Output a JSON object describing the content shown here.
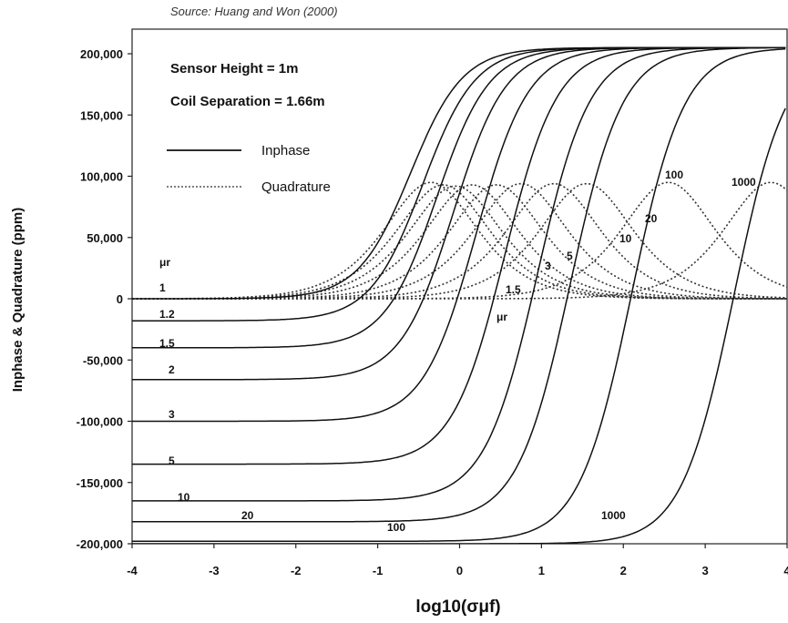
{
  "source": "Source: Huang and Won (2000)",
  "chart_data": {
    "type": "line",
    "xlabel": "log10(σμf)",
    "ylabel": "Inphase & Quadrature (ppm)",
    "xlim": [
      -4,
      4
    ],
    "ylim": [
      -200000,
      205000
    ],
    "x_ticks": [
      "-4",
      "-3",
      "-2",
      "-1",
      "0",
      "1",
      "2",
      "3",
      "4"
    ],
    "y_ticks": [
      "200,000",
      "150,000",
      "100,000",
      "50,000",
      "0",
      "-50,000",
      "-100,000",
      "-150,000",
      "-200,000"
    ],
    "annotations": [
      "Sensor Height  = 1m",
      "Coil Separation = 1.66m"
    ],
    "legend": [
      {
        "label": "Inphase",
        "style": "solid"
      },
      {
        "label": "Quadrature",
        "style": "dotted"
      }
    ],
    "mu_symbol": "μr",
    "inphase_series": [
      {
        "label": "1",
        "low": 0,
        "high": 205000,
        "center": -0.6,
        "width": 0.32
      },
      {
        "label": "1.2",
        "low": -18000,
        "high": 205000,
        "center": -0.45,
        "width": 0.32
      },
      {
        "label": "1.5",
        "low": -40000,
        "high": 205000,
        "center": -0.28,
        "width": 0.32
      },
      {
        "label": "2",
        "low": -66000,
        "high": 205000,
        "center": -0.08,
        "width": 0.32
      },
      {
        "label": "3",
        "low": -100000,
        "high": 205000,
        "center": 0.2,
        "width": 0.32
      },
      {
        "label": "5",
        "low": -135000,
        "high": 205000,
        "center": 0.55,
        "width": 0.32
      },
      {
        "label": "10",
        "low": -165000,
        "high": 205000,
        "center": 0.95,
        "width": 0.32
      },
      {
        "label": "20",
        "low": -182000,
        "high": 205000,
        "center": 1.35,
        "width": 0.32
      },
      {
        "label": "100",
        "low": -198000,
        "high": 205000,
        "center": 2.1,
        "width": 0.32
      },
      {
        "label": "1000",
        "low": -200000,
        "high": 205000,
        "center": 3.35,
        "width": 0.32
      }
    ],
    "quadrature_series": [
      {
        "label": "1",
        "peak": 95000,
        "center": -0.35
      },
      {
        "label": "1.2",
        "peak": 93000,
        "center": -0.2
      },
      {
        "label": "1.5",
        "peak": 92000,
        "center": -0.05
      },
      {
        "label": "2",
        "peak": 93000,
        "center": 0.15
      },
      {
        "label": "3",
        "peak": 93000,
        "center": 0.45
      },
      {
        "label": "5",
        "peak": 94000,
        "center": 0.75
      },
      {
        "label": "10",
        "peak": 94000,
        "center": 1.15
      },
      {
        "label": "20",
        "peak": 94000,
        "center": 1.55
      },
      {
        "label": "100",
        "peak": 95000,
        "center": 2.55
      },
      {
        "label": "1000",
        "peak": 95000,
        "center": 3.8
      }
    ]
  }
}
